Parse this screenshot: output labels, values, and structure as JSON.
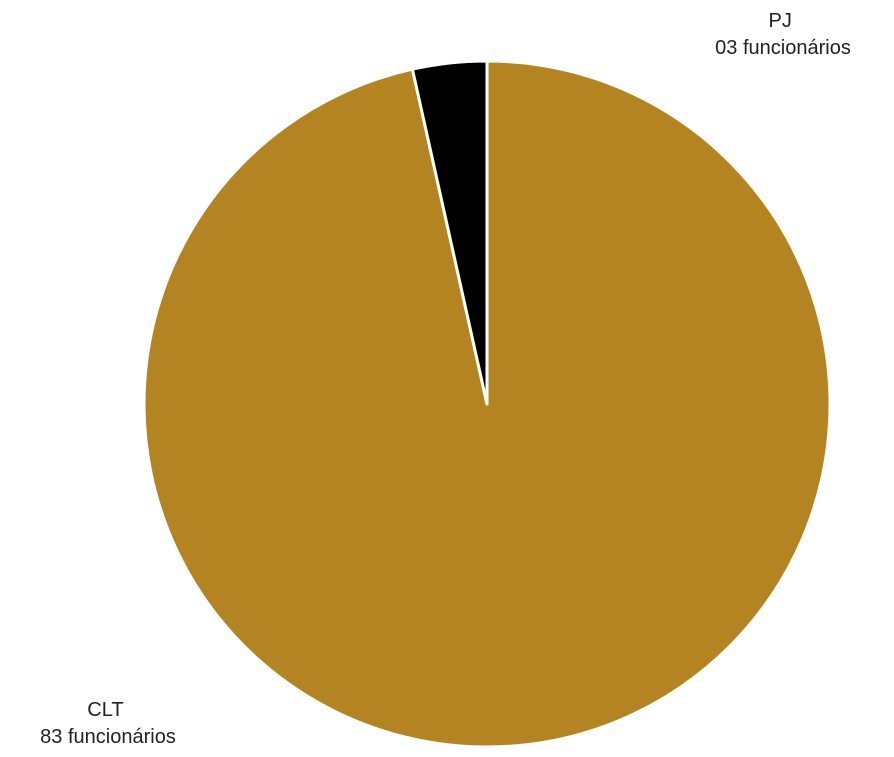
{
  "chart_data": {
    "type": "pie",
    "slices": [
      {
        "category": "CLT",
        "value": 83,
        "label_line1": "CLT",
        "label_line2": "83 funcionários",
        "color": "#B38421"
      },
      {
        "category": "PJ",
        "value": 3,
        "label_line1": "PJ",
        "label_line2": "03 funcionários",
        "color": "#000000"
      }
    ],
    "start_angle_deg": 0,
    "direction": "clockwise",
    "slice_border_color": "#ffffff",
    "legend": "none"
  }
}
